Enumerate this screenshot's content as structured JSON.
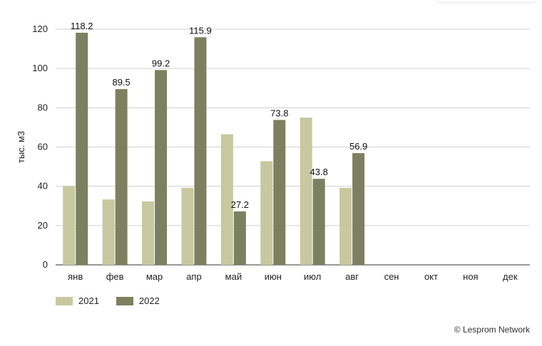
{
  "chart_data": {
    "type": "bar",
    "categories": [
      "янв",
      "фев",
      "мар",
      "апр",
      "май",
      "июн",
      "июл",
      "авг",
      "сен",
      "окт",
      "ноя",
      "дек"
    ],
    "series": [
      {
        "name": "2021",
        "color": "#c8c8a0",
        "values": [
          40.2,
          33.3,
          32.3,
          39.2,
          66.5,
          52.8,
          75.0,
          39.2,
          null,
          null,
          null,
          null
        ],
        "labels_shown": false
      },
      {
        "name": "2022",
        "color": "#7d8060",
        "values": [
          118.2,
          89.5,
          99.2,
          115.9,
          27.2,
          73.8,
          43.8,
          56.9,
          null,
          null,
          null,
          null
        ],
        "labels_shown": true
      }
    ],
    "ylabel": "тыс. м3",
    "ylim": [
      0,
      120
    ],
    "yticks": [
      0,
      20,
      40,
      60,
      80,
      100,
      120
    ],
    "grid": true,
    "legend_position": "bottom-left"
  },
  "credit": "© Lesprom Network"
}
